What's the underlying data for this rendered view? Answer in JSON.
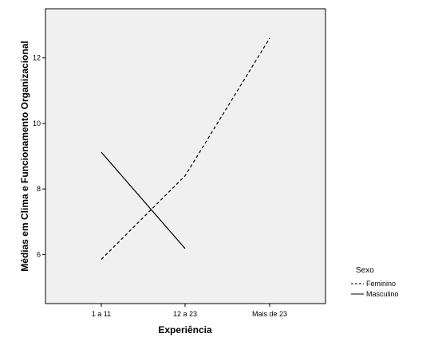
{
  "chart_data": {
    "type": "line",
    "title": "",
    "xlabel": "Experiência",
    "ylabel": "Médias em Clima e Funcionamento Organizacional",
    "categories": [
      "1 a 11",
      "12 a 23",
      "Mais de 23"
    ],
    "ylim": [
      4.5,
      13.5
    ],
    "yticks": [
      6,
      8,
      10,
      12
    ],
    "grid": false,
    "background_color": "#f0f0f0",
    "legend": {
      "title": "Sexo",
      "placement": "right-bottom"
    },
    "series": [
      {
        "name": "Feminino",
        "style": "dashed",
        "color": "#000000",
        "values": [
          5.85,
          8.4,
          12.6
        ]
      },
      {
        "name": "Masculino",
        "style": "solid",
        "color": "#000000",
        "values": [
          9.12,
          6.18,
          null
        ]
      }
    ]
  }
}
